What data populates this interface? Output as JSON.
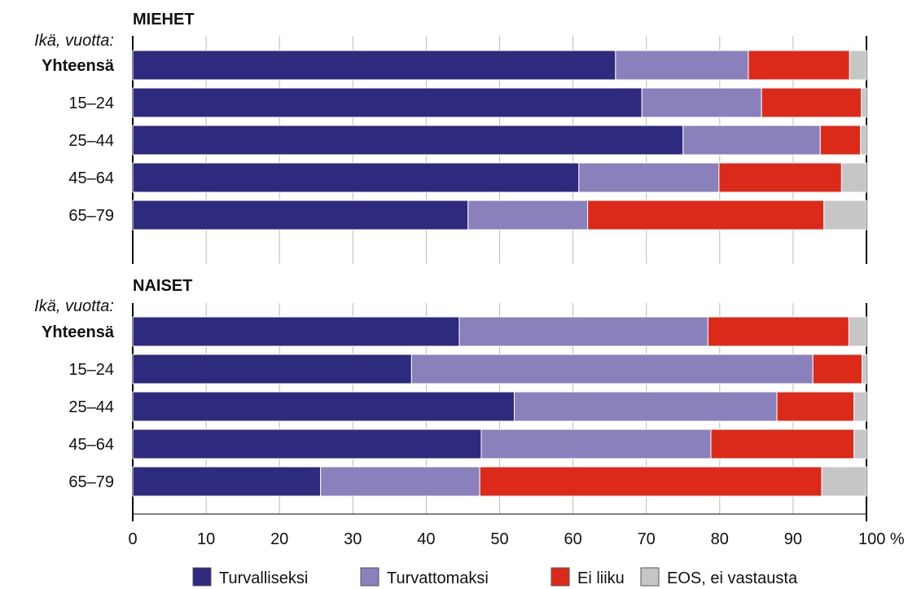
{
  "chart_data": [
    {
      "type": "bar",
      "orientation": "horizontal",
      "stacked": true,
      "title": "MIEHET",
      "y_axis_caption": "Ikä, vuotta:",
      "categories": [
        "Yhteensä",
        "15–24",
        "25–44",
        "45–64",
        "65–79"
      ],
      "series": [
        {
          "name": "Turvalliseksi",
          "values": [
            65.8,
            69.4,
            75.0,
            60.8,
            45.7
          ]
        },
        {
          "name": "Turvattomaksi",
          "values": [
            18.1,
            16.3,
            18.7,
            19.1,
            16.3
          ]
        },
        {
          "name": "Ei liiku",
          "values": [
            13.8,
            13.6,
            5.5,
            16.7,
            32.2
          ]
        },
        {
          "name": "EOS, ei vastausta",
          "values": [
            2.3,
            0.7,
            0.8,
            3.4,
            5.8
          ]
        }
      ],
      "xlim": [
        0,
        100
      ]
    },
    {
      "type": "bar",
      "orientation": "horizontal",
      "stacked": true,
      "title": "NAISET",
      "y_axis_caption": "Ikä, vuotta:",
      "categories": [
        "Yhteensä",
        "15–24",
        "25–44",
        "45–64",
        "65–79"
      ],
      "series": [
        {
          "name": "Turvalliseksi",
          "values": [
            44.5,
            38.0,
            52.0,
            47.5,
            25.6
          ]
        },
        {
          "name": "Turvattomaksi",
          "values": [
            33.9,
            54.7,
            35.8,
            31.3,
            21.7
          ]
        },
        {
          "name": "Ei liiku",
          "values": [
            19.2,
            6.7,
            10.5,
            19.5,
            46.6
          ]
        },
        {
          "name": "EOS, ei vastausta",
          "values": [
            2.4,
            0.6,
            1.7,
            1.7,
            6.1
          ]
        }
      ],
      "xlim": [
        0,
        100
      ]
    }
  ],
  "x_axis": {
    "ticks": [
      "0",
      "10",
      "20",
      "30",
      "40",
      "50",
      "60",
      "70",
      "80",
      "90",
      "100 %"
    ]
  },
  "legend": {
    "placement": "bottom-center",
    "items": [
      {
        "label": "Turvalliseksi",
        "color": "#2e2a7e"
      },
      {
        "label": "Turvattomaksi",
        "color": "#8a80bc"
      },
      {
        "label": "Ei liiku",
        "color": "#dc2a1a"
      },
      {
        "label": "EOS, ei vastausta",
        "color": "#c6c6c6"
      }
    ]
  },
  "colors": {
    "bold_category": "Yhteensä",
    "gridline": "#bbbbbb",
    "axis": "#000000"
  }
}
